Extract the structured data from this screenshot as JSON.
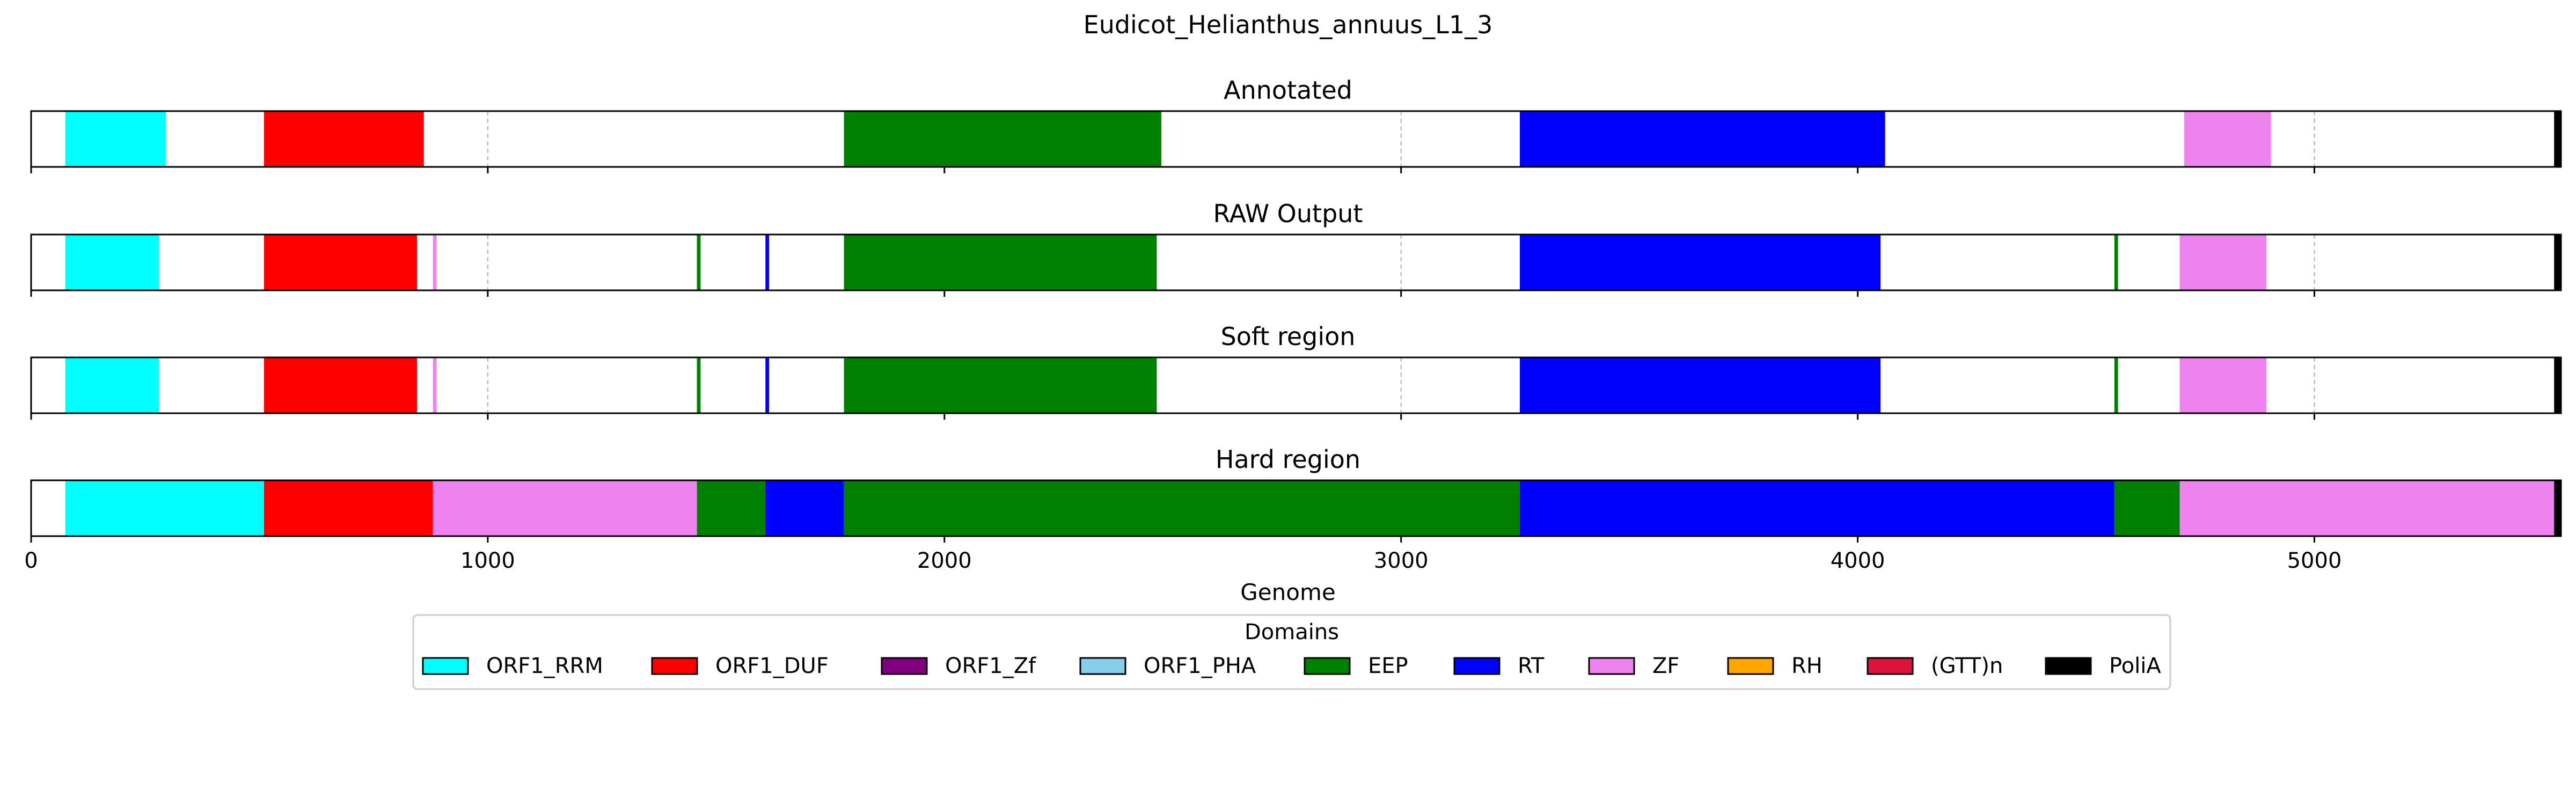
{
  "chart_data": {
    "type": "bar",
    "title": "Eudicot_Helianthus_annuus_L1_3",
    "xlabel": "Genome",
    "xlim": [
      0,
      5540
    ],
    "xticks": [
      0,
      1000,
      2000,
      3000,
      4000,
      5000
    ],
    "xtick_labels": [
      "0",
      "1000",
      "2000",
      "3000",
      "4000",
      "5000"
    ],
    "grid": "x dashed, visible only where track is unfilled/colored",
    "legend_title": "Domains",
    "legend_placement": "bottom-center",
    "legend": [
      {
        "name": "ORF1_RRM",
        "color": "#00ffff"
      },
      {
        "name": "ORF1_DUF",
        "color": "#ff0000"
      },
      {
        "name": "ORF1_Zf",
        "color": "#800080"
      },
      {
        "name": "ORF1_PHA",
        "color": "#87ceeb"
      },
      {
        "name": "EEP",
        "color": "#008000"
      },
      {
        "name": "RT",
        "color": "#0000ff"
      },
      {
        "name": "ZF",
        "color": "#ee82ee"
      },
      {
        "name": "RH",
        "color": "#ffa500"
      },
      {
        "name": "(GTT)n",
        "color": "#dc143c"
      },
      {
        "name": "PoliA",
        "color": "#000000"
      }
    ],
    "tracks": [
      {
        "title": "Annotated",
        "segments": [
          {
            "domain": "ORF1_RRM",
            "start": 75,
            "end": 295
          },
          {
            "domain": "ORF1_DUF",
            "start": 510,
            "end": 860
          },
          {
            "domain": "EEP",
            "start": 1780,
            "end": 2475
          },
          {
            "domain": "RT",
            "start": 3260,
            "end": 4060
          },
          {
            "domain": "ZF",
            "start": 4715,
            "end": 4905
          },
          {
            "domain": "PoliA",
            "start": 5525,
            "end": 5540
          }
        ]
      },
      {
        "title": "RAW Output",
        "segments": [
          {
            "domain": "ORF1_RRM",
            "start": 75,
            "end": 280
          },
          {
            "domain": "ORF1_DUF",
            "start": 510,
            "end": 845
          },
          {
            "domain": "ZF",
            "start": 880,
            "end": 888
          },
          {
            "domain": "EEP",
            "start": 1458,
            "end": 1466
          },
          {
            "domain": "RT",
            "start": 1608,
            "end": 1616
          },
          {
            "domain": "EEP",
            "start": 1780,
            "end": 2465
          },
          {
            "domain": "RT",
            "start": 3260,
            "end": 4050
          },
          {
            "domain": "EEP",
            "start": 4562,
            "end": 4570
          },
          {
            "domain": "ZF",
            "start": 4705,
            "end": 4895
          },
          {
            "domain": "PoliA",
            "start": 5525,
            "end": 5540
          }
        ]
      },
      {
        "title": "Soft region",
        "segments": [
          {
            "domain": "ORF1_RRM",
            "start": 75,
            "end": 280
          },
          {
            "domain": "ORF1_DUF",
            "start": 510,
            "end": 845
          },
          {
            "domain": "ZF",
            "start": 880,
            "end": 888
          },
          {
            "domain": "EEP",
            "start": 1458,
            "end": 1466
          },
          {
            "domain": "RT",
            "start": 1608,
            "end": 1616
          },
          {
            "domain": "EEP",
            "start": 1780,
            "end": 2465
          },
          {
            "domain": "RT",
            "start": 3260,
            "end": 4050
          },
          {
            "domain": "EEP",
            "start": 4562,
            "end": 4570
          },
          {
            "domain": "ZF",
            "start": 4705,
            "end": 4895
          },
          {
            "domain": "PoliA",
            "start": 5525,
            "end": 5540
          }
        ]
      },
      {
        "title": "Hard region",
        "segments": [
          {
            "domain": "ORF1_RRM",
            "start": 75,
            "end": 510
          },
          {
            "domain": "ORF1_DUF",
            "start": 510,
            "end": 880
          },
          {
            "domain": "ZF",
            "start": 880,
            "end": 1458
          },
          {
            "domain": "EEP",
            "start": 1458,
            "end": 1608
          },
          {
            "domain": "RT",
            "start": 1608,
            "end": 1780
          },
          {
            "domain": "EEP",
            "start": 1780,
            "end": 3260
          },
          {
            "domain": "RT",
            "start": 3260,
            "end": 4562
          },
          {
            "domain": "EEP",
            "start": 4562,
            "end": 4705
          },
          {
            "domain": "ZF",
            "start": 4705,
            "end": 5525
          },
          {
            "domain": "PoliA",
            "start": 5525,
            "end": 5540
          }
        ]
      }
    ]
  }
}
